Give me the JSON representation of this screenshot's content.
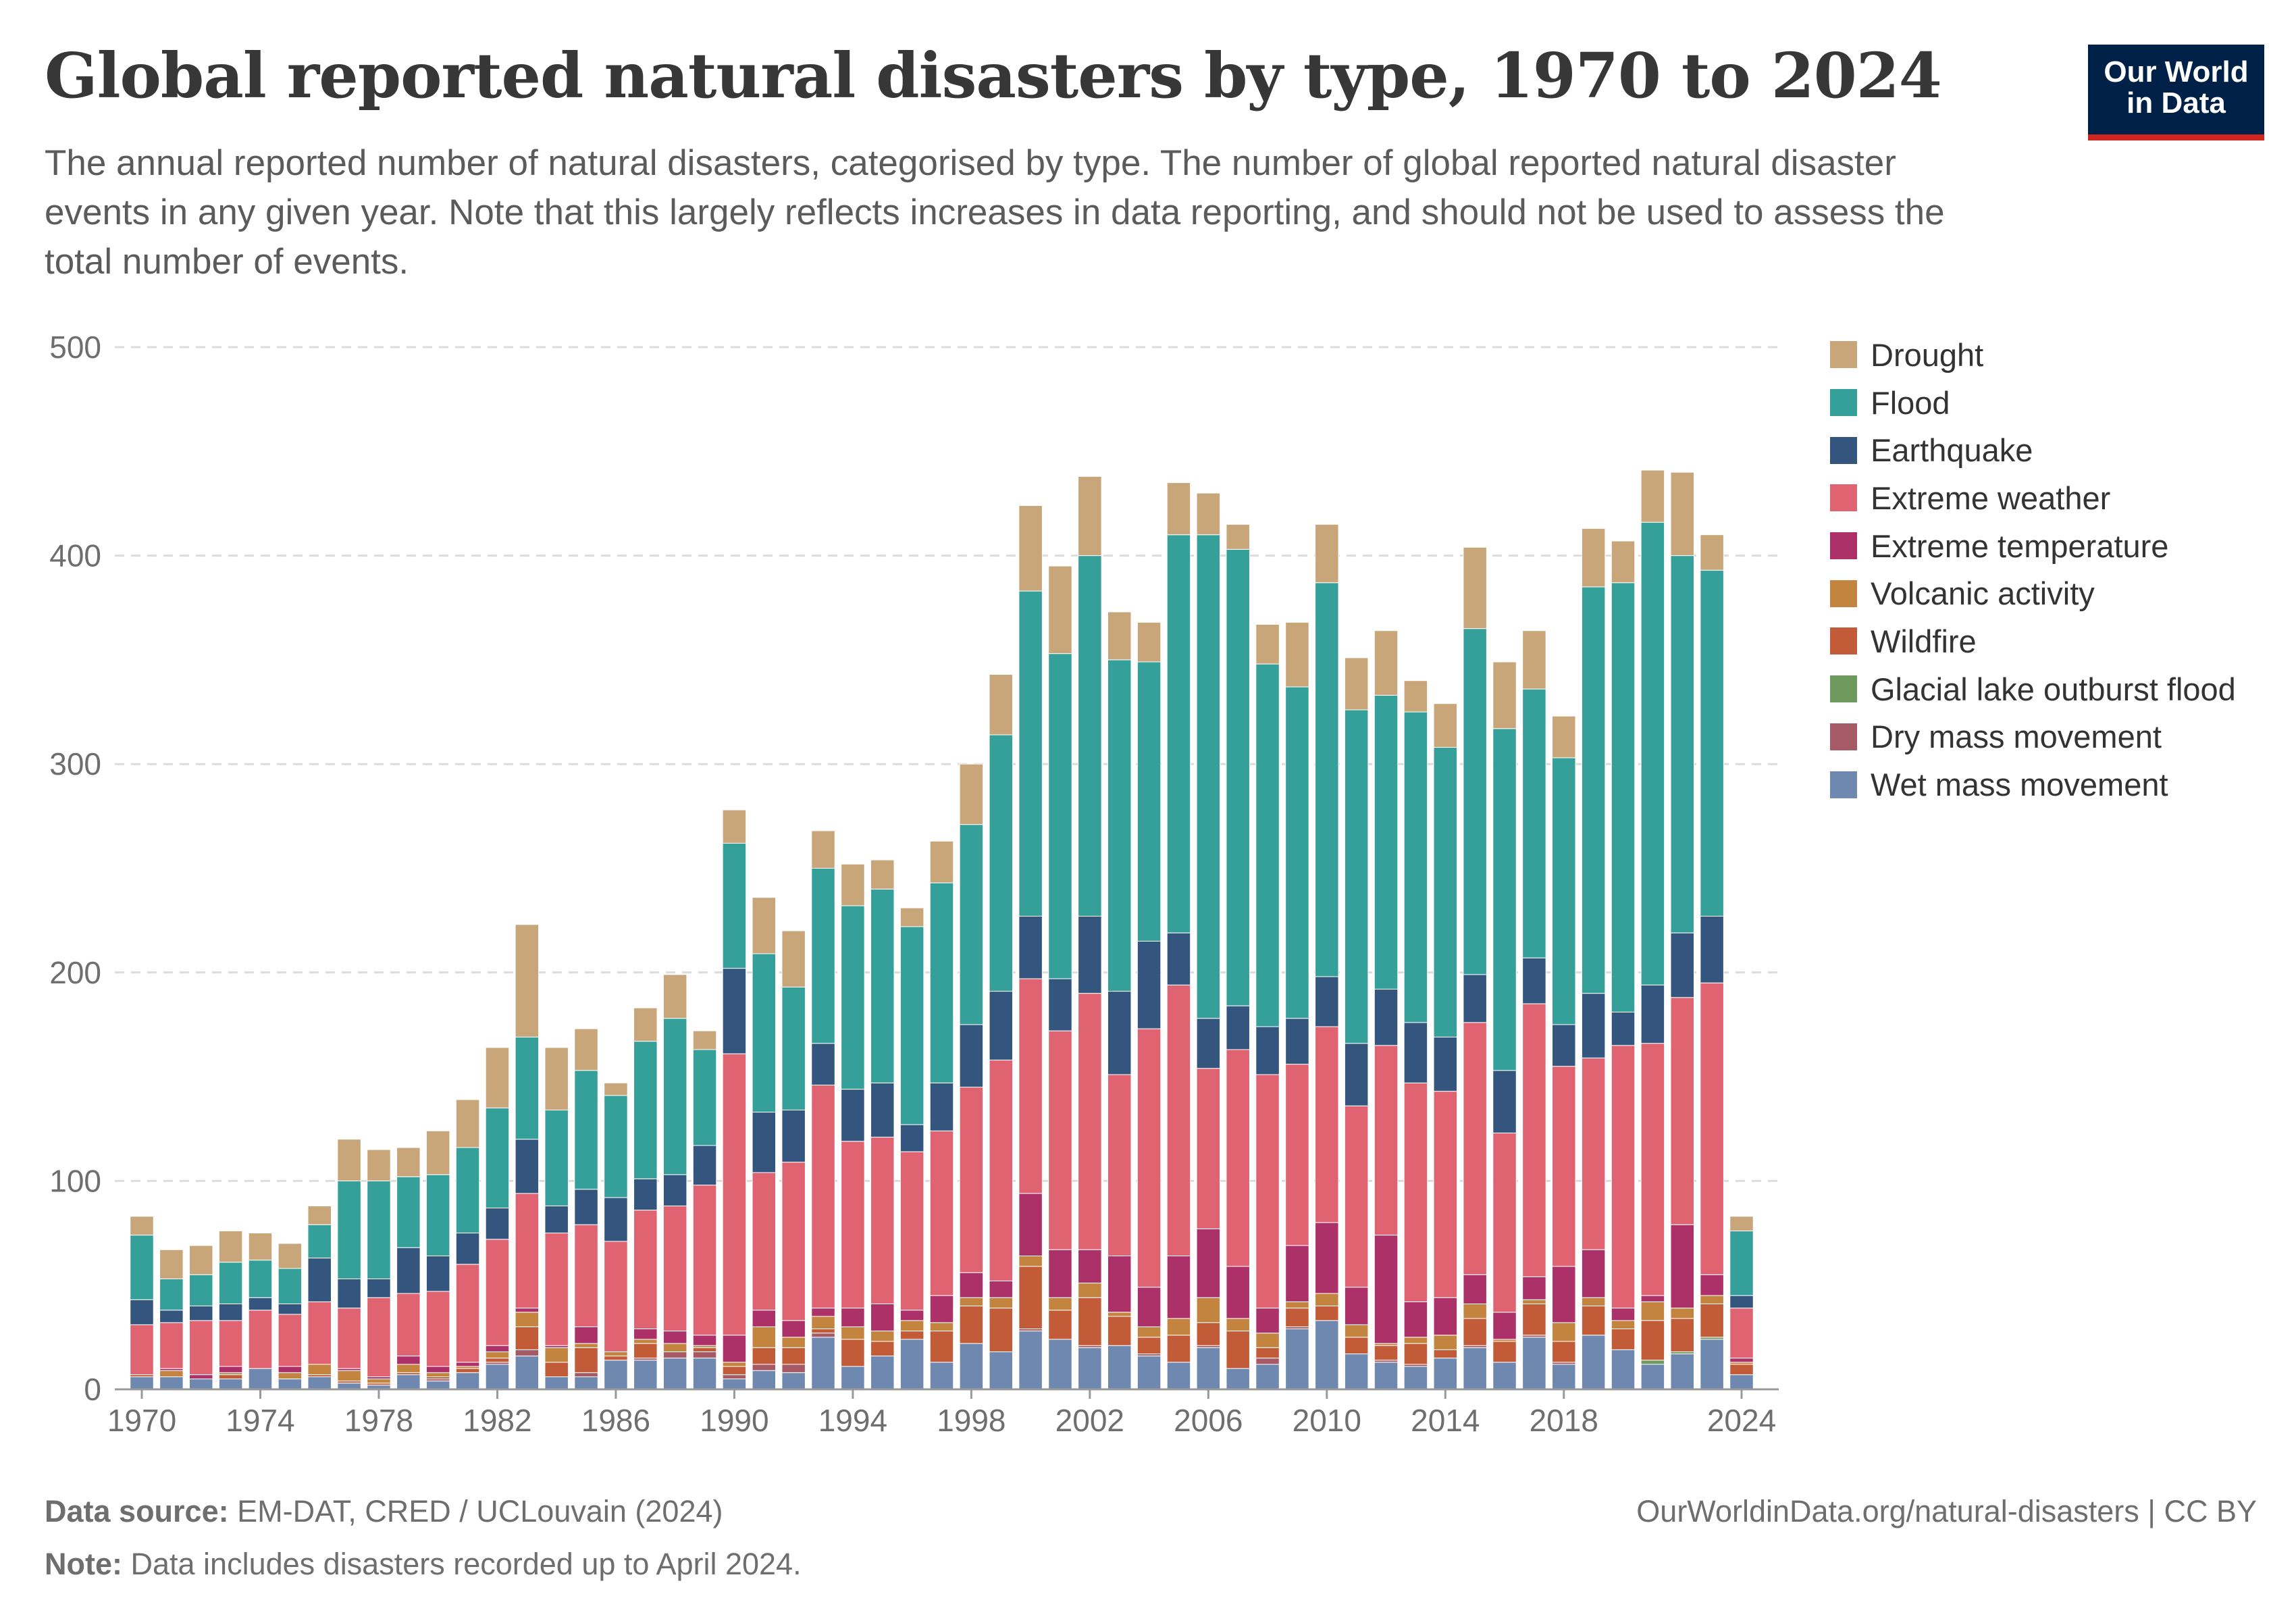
{
  "header": {
    "title": "Global reported natural disasters by type, 1970 to 2024",
    "subtitle": "The annual reported number of natural disasters, categorised by type. The number of global reported natural disaster events in any given year. Note that this largely reflects increases in data reporting, and should not be used to assess the total number of events.",
    "logo_line1": "Our World",
    "logo_line2": "in Data"
  },
  "footer": {
    "source_label": "Data source:",
    "source_text": "EM-DAT, CRED / UCLouvain (2024)",
    "note_label": "Note:",
    "note_text": "Data includes disasters recorded up to April 2024.",
    "url": "OurWorldinData.org/natural-disasters | CC BY"
  },
  "chart_data": {
    "type": "bar",
    "stacked": true,
    "title": "Global reported natural disasters by type, 1970 to 2024",
    "xlabel": "",
    "ylabel": "",
    "ylim": [
      0,
      500
    ],
    "yticks": [
      0,
      100,
      200,
      300,
      400,
      500
    ],
    "xtick_labels": [
      "1970",
      "1974",
      "1978",
      "1982",
      "1986",
      "1990",
      "1994",
      "1998",
      "2002",
      "2006",
      "2010",
      "2014",
      "2018",
      "2024"
    ],
    "grid": true,
    "legend_position": "right",
    "categories": [
      1970,
      1971,
      1972,
      1973,
      1974,
      1975,
      1976,
      1977,
      1978,
      1979,
      1980,
      1981,
      1982,
      1983,
      1984,
      1985,
      1986,
      1987,
      1988,
      1989,
      1990,
      1991,
      1992,
      1993,
      1994,
      1995,
      1996,
      1997,
      1998,
      1999,
      2000,
      2001,
      2002,
      2003,
      2004,
      2005,
      2006,
      2007,
      2008,
      2009,
      2010,
      2011,
      2012,
      2013,
      2014,
      2015,
      2016,
      2017,
      2018,
      2019,
      2020,
      2021,
      2022,
      2023,
      2024
    ],
    "series": [
      {
        "name": "Wet mass movement",
        "color": "#6f88b0",
        "values": [
          6,
          6,
          5,
          5,
          10,
          5,
          6,
          3,
          2,
          7,
          4,
          8,
          12,
          16,
          6,
          6,
          14,
          14,
          15,
          15,
          5,
          9,
          8,
          25,
          11,
          16,
          24,
          13,
          22,
          18,
          28,
          24,
          20,
          21,
          16,
          13,
          20,
          10,
          12,
          29,
          33,
          17,
          13,
          11,
          15,
          20,
          13,
          25,
          12,
          26,
          19,
          12,
          17,
          24,
          7
        ]
      },
      {
        "name": "Dry mass movement",
        "color": "#a65a66",
        "values": [
          0,
          0,
          0,
          0,
          0,
          0,
          0,
          0,
          0,
          0,
          1,
          0,
          1,
          3,
          0,
          2,
          0,
          1,
          3,
          3,
          2,
          3,
          4,
          2,
          0,
          0,
          0,
          0,
          0,
          0,
          1,
          0,
          1,
          0,
          1,
          0,
          1,
          0,
          3,
          1,
          0,
          0,
          1,
          1,
          0,
          1,
          0,
          1,
          1,
          0,
          0,
          0,
          0,
          0,
          0
        ]
      },
      {
        "name": "Glacial lake outburst flood",
        "color": "#6e9a5e",
        "values": [
          0,
          0,
          0,
          0,
          0,
          0,
          0,
          0,
          0,
          0,
          0,
          0,
          0,
          0,
          0,
          0,
          0,
          0,
          0,
          0,
          0,
          0,
          0,
          0,
          0,
          0,
          0,
          0,
          0,
          0,
          0,
          0,
          0,
          0,
          0,
          0,
          0,
          0,
          0,
          0,
          0,
          0,
          0,
          0,
          0,
          0,
          0,
          0,
          0,
          0,
          0,
          2,
          1,
          1,
          0
        ]
      },
      {
        "name": "Wildfire",
        "color": "#c25b38",
        "values": [
          1,
          0,
          0,
          2,
          0,
          0,
          1,
          1,
          1,
          1,
          1,
          2,
          2,
          11,
          7,
          12,
          2,
          7,
          0,
          2,
          4,
          8,
          8,
          2,
          13,
          7,
          4,
          15,
          18,
          21,
          30,
          14,
          23,
          14,
          8,
          13,
          11,
          18,
          5,
          9,
          7,
          8,
          7,
          10,
          4,
          13,
          10,
          15,
          10,
          14,
          10,
          19,
          16,
          16,
          5
        ]
      },
      {
        "name": "Volcanic activity",
        "color": "#c2843f",
        "values": [
          0,
          3,
          0,
          1,
          0,
          3,
          5,
          5,
          2,
          4,
          2,
          1,
          3,
          7,
          7,
          2,
          2,
          2,
          4,
          1,
          2,
          10,
          5,
          6,
          6,
          5,
          5,
          4,
          4,
          5,
          5,
          6,
          7,
          2,
          5,
          8,
          12,
          6,
          7,
          3,
          6,
          6,
          1,
          3,
          7,
          7,
          1,
          2,
          9,
          4,
          4,
          9,
          5,
          4,
          1
        ]
      },
      {
        "name": "Extreme temperature",
        "color": "#ad3169",
        "values": [
          0,
          1,
          2,
          3,
          0,
          3,
          0,
          1,
          1,
          4,
          3,
          2,
          3,
          2,
          1,
          8,
          0,
          5,
          6,
          5,
          13,
          8,
          8,
          4,
          9,
          13,
          5,
          13,
          12,
          8,
          30,
          23,
          16,
          27,
          19,
          30,
          33,
          25,
          12,
          27,
          34,
          18,
          52,
          17,
          18,
          14,
          13,
          11,
          27,
          23,
          6,
          3,
          40,
          10,
          2
        ]
      },
      {
        "name": "Extreme weather",
        "color": "#e06372",
        "values": [
          24,
          22,
          26,
          22,
          28,
          25,
          30,
          29,
          38,
          30,
          36,
          47,
          51,
          55,
          54,
          49,
          53,
          57,
          60,
          72,
          135,
          66,
          76,
          107,
          80,
          80,
          76,
          79,
          89,
          106,
          103,
          105,
          123,
          87,
          124,
          130,
          77,
          104,
          112,
          87,
          94,
          87,
          91,
          105,
          99,
          121,
          86,
          131,
          96,
          92,
          126,
          121,
          109,
          140,
          24
        ]
      },
      {
        "name": "Earthquake",
        "color": "#33557e",
        "values": [
          12,
          6,
          7,
          8,
          6,
          5,
          21,
          14,
          9,
          22,
          17,
          15,
          15,
          26,
          13,
          17,
          21,
          15,
          15,
          19,
          41,
          29,
          25,
          20,
          25,
          26,
          13,
          23,
          30,
          33,
          30,
          25,
          37,
          40,
          42,
          25,
          24,
          21,
          23,
          22,
          24,
          30,
          27,
          29,
          26,
          23,
          30,
          22,
          20,
          31,
          16,
          28,
          31,
          32,
          6
        ]
      },
      {
        "name": "Flood",
        "color": "#35a099",
        "values": [
          31,
          15,
          15,
          20,
          18,
          17,
          16,
          47,
          47,
          34,
          39,
          41,
          48,
          49,
          46,
          57,
          49,
          66,
          75,
          46,
          60,
          76,
          59,
          84,
          88,
          93,
          95,
          96,
          96,
          123,
          156,
          156,
          173,
          159,
          134,
          191,
          232,
          219,
          174,
          159,
          189,
          160,
          141,
          149,
          139,
          166,
          164,
          129,
          128,
          195,
          206,
          222,
          181,
          166,
          31
        ]
      },
      {
        "name": "Drought",
        "color": "#c9a67a",
        "values": [
          9,
          14,
          14,
          15,
          13,
          12,
          9,
          20,
          15,
          14,
          21,
          23,
          29,
          54,
          30,
          20,
          6,
          16,
          21,
          9,
          16,
          27,
          27,
          18,
          20,
          14,
          9,
          20,
          29,
          29,
          41,
          42,
          38,
          23,
          19,
          25,
          20,
          12,
          19,
          31,
          28,
          25,
          31,
          15,
          21,
          39,
          32,
          28,
          20,
          28,
          20,
          25,
          40,
          17,
          7
        ]
      }
    ],
    "legend_order": [
      "Drought",
      "Flood",
      "Earthquake",
      "Extreme weather",
      "Extreme temperature",
      "Volcanic activity",
      "Wildfire",
      "Glacial lake outburst flood",
      "Dry mass movement",
      "Wet mass movement"
    ]
  }
}
